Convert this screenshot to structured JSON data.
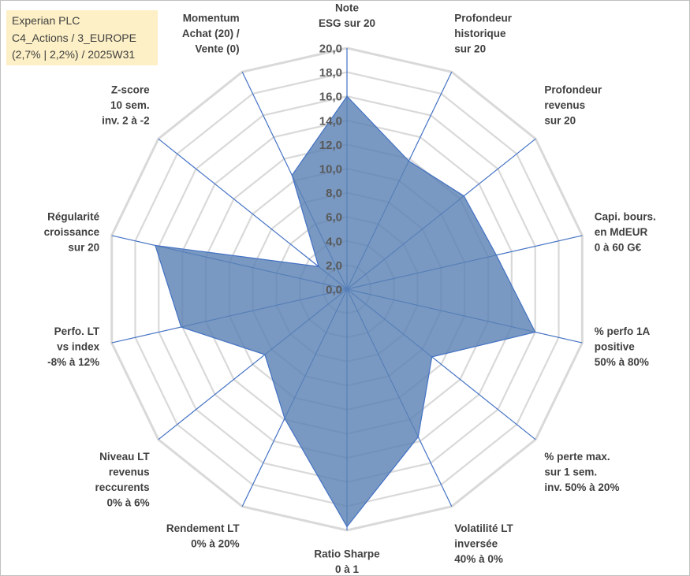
{
  "title": {
    "line1": "Experian PLC",
    "line2": "C4_Actions / 3_EUROPE",
    "line3": "(2,7% | 2,2%) / 2025W31"
  },
  "chart_data": {
    "type": "radar",
    "rmin": 0,
    "rmax": 20,
    "tick_step": 2,
    "tick_labels": [
      "0,0",
      "2,0",
      "4,0",
      "6,0",
      "8,0",
      "10,0",
      "12,0",
      "14,0",
      "16,0",
      "18,0",
      "20,0"
    ],
    "grid": true,
    "colors": {
      "fill": "#5b82b5",
      "stroke": "#4472c4",
      "grid": "#d9d9d9",
      "axis": "#4472c4"
    },
    "axes": [
      {
        "lines": [
          "Note",
          "ESG sur 20"
        ],
        "value": 16.0
      },
      {
        "lines": [
          "Profondeur",
          "historique",
          "sur 20"
        ],
        "value": 11.8
      },
      {
        "lines": [
          "Profondeur",
          "revenus",
          "sur 20"
        ],
        "value": 12.4
      },
      {
        "lines": [
          "Capi. bours.",
          "en MdEUR",
          "0 à 60 G€"
        ],
        "value": 12.7
      },
      {
        "lines": [
          "% perfo 1A",
          "positive",
          "50% à 80%"
        ],
        "value": 16.0
      },
      {
        "lines": [
          "% perte max.",
          "sur 1 sem.",
          "inv. 50% à 20%"
        ],
        "value": 9.0
      },
      {
        "lines": [
          "Volatilité LT",
          "inversée",
          "40% à 0%"
        ],
        "value": 13.6
      },
      {
        "lines": [
          "Ratio Sharpe",
          "0 à 1"
        ],
        "value": 19.7
      },
      {
        "lines": [
          "Rendement LT",
          "0% à 20%"
        ],
        "value": 11.9
      },
      {
        "lines": [
          "Niveau LT",
          "revenus",
          "reccurents",
          "0% à 6%"
        ],
        "value": 8.7
      },
      {
        "lines": [
          "Perfo. LT",
          "vs index",
          "-8% à 12%"
        ],
        "value": 14.1
      },
      {
        "lines": [
          "Régularité",
          "croissance",
          "sur 20"
        ],
        "value": 16.3
      },
      {
        "lines": [
          "Z-score",
          "10 sem.",
          "inv. 2 à -2"
        ],
        "value": 3.0
      },
      {
        "lines": [
          "Momentum",
          "Achat (20) /",
          "Vente (0)"
        ],
        "value": 10.5
      }
    ]
  }
}
